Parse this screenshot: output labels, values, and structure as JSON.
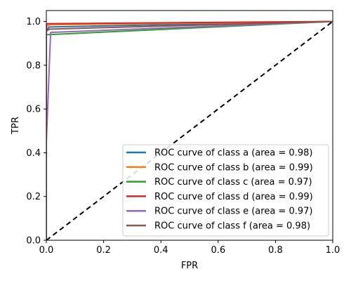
{
  "chart_data": {
    "type": "line",
    "xlabel": "FPR",
    "ylabel": "TPR",
    "xlim": [
      0.0,
      1.0
    ],
    "ylim": [
      0.0,
      1.05
    ],
    "xticks": [
      "0.0",
      "0.2",
      "0.4",
      "0.6",
      "0.8",
      "1.0"
    ],
    "xtick_values": [
      0.0,
      0.2,
      0.4,
      0.6,
      0.8,
      1.0
    ],
    "yticks": [
      "0.0",
      "0.2",
      "0.4",
      "0.6",
      "0.8",
      "1.0"
    ],
    "ytick_values": [
      0.0,
      0.2,
      0.4,
      0.6,
      0.8,
      1.0
    ],
    "grid": false,
    "legend_position": "lower-right",
    "diagonal": {
      "x": [
        0.0,
        1.0
      ],
      "y": [
        0.0,
        1.0
      ],
      "color": "#000000",
      "style": "dashed"
    },
    "series": [
      {
        "name": "ROC curve of class a (area = 0.98)",
        "color": "#1f77b4",
        "x": [
          0.0,
          0.0,
          0.01,
          1.0
        ],
        "y": [
          0.0,
          0.96,
          0.975,
          1.0
        ]
      },
      {
        "name": "ROC curve of class b (area = 0.99)",
        "color": "#ff7f0e",
        "x": [
          0.0,
          0.0,
          0.01,
          1.0
        ],
        "y": [
          0.0,
          0.975,
          0.985,
          1.0
        ]
      },
      {
        "name": "ROC curve of class c (area = 0.97)",
        "color": "#2ca02c",
        "x": [
          0.0,
          0.0,
          0.01,
          1.0
        ],
        "y": [
          0.0,
          0.94,
          0.94,
          1.0
        ]
      },
      {
        "name": "ROC curve of class d (area = 0.99)",
        "color": "#d62728",
        "x": [
          0.0,
          0.0,
          0.005,
          1.0
        ],
        "y": [
          0.0,
          0.985,
          0.99,
          1.0
        ]
      },
      {
        "name": "ROC curve of class e (area = 0.97)",
        "color": "#9467bd",
        "x": [
          0.0,
          0.0,
          0.015,
          1.0
        ],
        "y": [
          0.0,
          0.45,
          0.95,
          1.0
        ]
      },
      {
        "name": "ROC curve of class f (area = 0.98)",
        "color": "#8c564b",
        "x": [
          0.0,
          0.0,
          0.01,
          1.0
        ],
        "y": [
          0.0,
          0.955,
          0.965,
          1.0
        ]
      }
    ]
  }
}
